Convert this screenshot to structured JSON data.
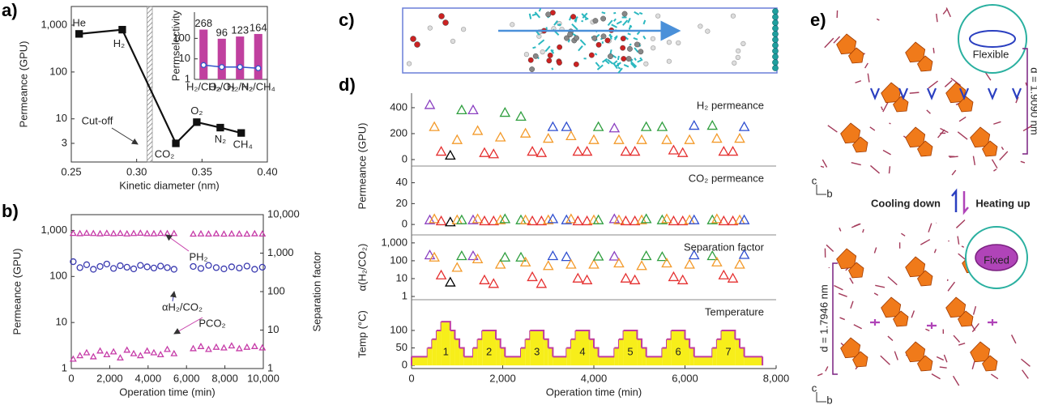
{
  "panel_labels": [
    "a)",
    "b)",
    "c)",
    "d)",
    "e)"
  ],
  "structure": {
    "callout_top": "Flexible",
    "callout_bottom": "Fixed",
    "cooling": "Cooling down",
    "heating": "Heating up",
    "spacing_top": "d = 1.9090 nm",
    "spacing_bottom": "d = 1.7946 nm",
    "axis_c": "c",
    "axis_b": "b"
  },
  "chart_data": [
    {
      "type": "line",
      "xlabel": "Kinetic diameter (nm)",
      "ylabel": "Permeance (GPU)",
      "log_y": true,
      "x": [
        0.256,
        0.289,
        0.33,
        0.346,
        0.364,
        0.38
      ],
      "values": [
        650,
        800,
        3,
        8.5,
        6.5,
        5
      ],
      "point_labels": [
        "He",
        "H₂",
        "CO₂",
        "O₂",
        "N₂",
        "CH₄"
      ],
      "color": "#111111",
      "xlim": [
        0.25,
        0.4
      ],
      "xticks": [
        0.25,
        {
          "value": 0.3,
          "label": "0.30"
        },
        0.35,
        {
          "value": 0.4,
          "label": "0.40"
        }
      ],
      "ylim": [
        1.2,
        2500
      ],
      "yticks": [
        3,
        10,
        100,
        {
          "value": 1000,
          "label": "1,000"
        }
      ],
      "cutoff_band": [
        0.308,
        0.312
      ],
      "annotations": [
        "Cut-off"
      ]
    },
    {
      "type": "bar",
      "ylabel": "Permselectivity",
      "log_y": true,
      "categories": [
        "H₂/CO₂",
        "H₂/O₂",
        "H₂/N₂",
        "H₂/CH₄"
      ],
      "series": [
        {
          "style": "bar",
          "color": "#c0409f",
          "values": [
            268,
            96,
            123,
            164
          ]
        },
        {
          "style": "line",
          "color": "#3355cc",
          "values": [
            5,
            4,
            4,
            3.5
          ]
        }
      ],
      "ylim": [
        1,
        1900
      ],
      "yticks": [
        1,
        10,
        100
      ]
    },
    {
      "type": "scatter",
      "xlabel": "Operation time (min)",
      "ylabel": "Permeance (GPU)",
      "y2label": "Separation factor",
      "log_y": true,
      "log_y2": true,
      "ycolor": "#c63ca8",
      "y2color": "#3b3bb0",
      "x": [
        100,
        450,
        800,
        1150,
        1500,
        1850,
        2200,
        2550,
        2900,
        3250,
        3600,
        3950,
        4300,
        4650,
        5000,
        5350,
        6350,
        6750,
        7150,
        7550,
        7950,
        8350,
        8750,
        9150,
        9550,
        9950
      ],
      "series": [
        {
          "marker": "triangle",
          "axis": "y",
          "color": "#c63ca8",
          "values": [
            860,
            850,
            870,
            855,
            845,
            865,
            850,
            860,
            840,
            855,
            870,
            850,
            845,
            860,
            850,
            855,
            830,
            840,
            835,
            845,
            830,
            840,
            835,
            830,
            845,
            835
          ]
        },
        {
          "marker": "circle",
          "axis": "y2",
          "color": "#3b3bb0",
          "values": [
            600,
            420,
            500,
            380,
            450,
            520,
            400,
            470,
            430,
            390,
            480,
            440,
            410,
            460,
            420,
            380,
            450,
            400,
            480,
            420,
            390,
            440,
            410,
            460,
            380,
            430
          ]
        },
        {
          "marker": "triangle",
          "axis": "y",
          "color": "#c63ca8",
          "values": [
            1.6,
            1.9,
            2.2,
            1.8,
            2.4,
            2.0,
            2.3,
            1.7,
            2.5,
            2.1,
            1.9,
            2.4,
            2.2,
            2.0,
            2.6,
            2.1,
            2.7,
            3.0,
            2.6,
            2.9,
            2.8,
            3.1,
            2.7,
            2.9,
            3.0,
            2.8
          ]
        }
      ],
      "annotations": [
        "PH₂",
        "αH₂/CO₂",
        "PCO₂"
      ],
      "xlim": [
        0,
        10000
      ],
      "xticks": [
        0,
        {
          "value": 2000,
          "label": "2,000"
        },
        {
          "value": 4000,
          "label": "4,000"
        },
        {
          "value": 6000,
          "label": "6,000"
        },
        {
          "value": 8000,
          "label": "8,000"
        },
        {
          "value": 10000,
          "label": "10,000"
        }
      ],
      "ylim": [
        1,
        2200
      ],
      "yticks": [
        1,
        10,
        100,
        {
          "value": 1000,
          "label": "1,000"
        }
      ],
      "y2lim": [
        1,
        10000
      ],
      "y2ticks": [
        1,
        10,
        100,
        {
          "value": 1000,
          "label": "1,000"
        },
        {
          "value": 10000,
          "label": "10,000"
        }
      ]
    },
    {
      "type": "scatter",
      "title": "H₂ permeance",
      "ylabel": "Permeance (GPU)",
      "marker": "triangle",
      "x": [
        400,
        500,
        650,
        850,
        1000,
        1100,
        1350,
        1450,
        1600,
        1800,
        1950,
        2050,
        2400,
        2500,
        2650,
        2850,
        3000,
        3100,
        3400,
        3500,
        3650,
        3850,
        4000,
        4100,
        4450,
        4550,
        4700,
        4900,
        5050,
        5150,
        5500,
        5600,
        5750,
        5950,
        6100,
        6200,
        6600,
        6700,
        6850,
        7050,
        7200,
        7300
      ],
      "values": [
        420,
        250,
        60,
        30,
        150,
        380,
        380,
        220,
        50,
        40,
        170,
        360,
        330,
        200,
        60,
        50,
        160,
        250,
        250,
        180,
        60,
        60,
        150,
        250,
        240,
        150,
        60,
        60,
        150,
        250,
        250,
        150,
        70,
        50,
        150,
        260,
        260,
        160,
        60,
        60,
        160,
        250
      ],
      "colors": [
        "#8a3fc0",
        "#f39a2a",
        "#e53030",
        "#000000",
        "#f39a2a",
        "#2e9e3e",
        "#8a3fc0",
        "#f39a2a",
        "#e53030",
        "#e53030",
        "#f39a2a",
        "#2e9e3e",
        "#2e9e3e",
        "#f39a2a",
        "#e53030",
        "#e53030",
        "#f39a2a",
        "#2f4fd0",
        "#2f4fd0",
        "#f39a2a",
        "#e53030",
        "#e53030",
        "#f39a2a",
        "#2e9e3e",
        "#8a3fc0",
        "#f39a2a",
        "#e53030",
        "#e53030",
        "#f39a2a",
        "#2e9e3e",
        "#2e9e3e",
        "#f39a2a",
        "#e53030",
        "#e53030",
        "#f39a2a",
        "#2f4fd0",
        "#2e9e3e",
        "#f39a2a",
        "#e53030",
        "#e53030",
        "#f39a2a",
        "#2f4fd0"
      ],
      "xlim": [
        0,
        8000
      ],
      "ylim": [
        -50,
        512
      ],
      "yticks": [
        0,
        200,
        400
      ]
    },
    {
      "type": "scatter",
      "title": "CO₂ permeance",
      "marker": "triangle",
      "x": [
        400,
        500,
        650,
        850,
        1000,
        1100,
        1350,
        1450,
        1600,
        1800,
        1950,
        2050,
        2400,
        2500,
        2650,
        2850,
        3000,
        3100,
        3400,
        3500,
        3650,
        3850,
        4000,
        4100,
        4450,
        4550,
        4700,
        4900,
        5050,
        5150,
        5500,
        5600,
        5750,
        5950,
        6100,
        6200,
        6600,
        6700,
        6850,
        7050,
        7200,
        7300
      ],
      "values": [
        4,
        5,
        3,
        2,
        4,
        4,
        4,
        5,
        3,
        3,
        4,
        5,
        4,
        4,
        3,
        3,
        4,
        5,
        4,
        5,
        3,
        3,
        4,
        4,
        5,
        4,
        3,
        3,
        4,
        5,
        4,
        5,
        3,
        3,
        4,
        4,
        4,
        5,
        3,
        3,
        4,
        4
      ],
      "colors": [
        "#8a3fc0",
        "#f39a2a",
        "#e53030",
        "#000000",
        "#f39a2a",
        "#2e9e3e",
        "#8a3fc0",
        "#f39a2a",
        "#e53030",
        "#e53030",
        "#f39a2a",
        "#2e9e3e",
        "#2e9e3e",
        "#f39a2a",
        "#e53030",
        "#e53030",
        "#f39a2a",
        "#2f4fd0",
        "#2f4fd0",
        "#f39a2a",
        "#e53030",
        "#e53030",
        "#f39a2a",
        "#2e9e3e",
        "#8a3fc0",
        "#f39a2a",
        "#e53030",
        "#e53030",
        "#f39a2a",
        "#2e9e3e",
        "#2e9e3e",
        "#f39a2a",
        "#e53030",
        "#e53030",
        "#f39a2a",
        "#2f4fd0",
        "#2e9e3e",
        "#f39a2a",
        "#e53030",
        "#e53030",
        "#f39a2a",
        "#2f4fd0"
      ],
      "xlim": [
        0,
        8000
      ],
      "ylim": [
        -10,
        56
      ],
      "yticks": [
        0,
        20,
        40
      ]
    },
    {
      "type": "scatter",
      "title": "Separation factor",
      "ylabel": "α(H₂/CO₂)",
      "marker": "triangle",
      "log_y": true,
      "x": [
        400,
        500,
        650,
        850,
        1000,
        1100,
        1350,
        1450,
        1600,
        1800,
        1950,
        2050,
        2400,
        2500,
        2650,
        2850,
        3000,
        3100,
        3400,
        3500,
        3650,
        3850,
        4000,
        4100,
        4450,
        4550,
        4700,
        4900,
        5050,
        5150,
        5500,
        5600,
        5750,
        5950,
        6100,
        6200,
        6600,
        6700,
        6850,
        7050,
        7200,
        7300
      ],
      "values": [
        200,
        150,
        15,
        6,
        40,
        180,
        180,
        120,
        8,
        5,
        60,
        150,
        150,
        80,
        12,
        5,
        50,
        180,
        160,
        60,
        10,
        8,
        60,
        170,
        170,
        70,
        10,
        8,
        50,
        180,
        160,
        70,
        12,
        8,
        60,
        200,
        180,
        80,
        15,
        10,
        60,
        210
      ],
      "colors": [
        "#8a3fc0",
        "#f39a2a",
        "#e53030",
        "#000000",
        "#f39a2a",
        "#2e9e3e",
        "#8a3fc0",
        "#f39a2a",
        "#e53030",
        "#e53030",
        "#f39a2a",
        "#2e9e3e",
        "#2e9e3e",
        "#f39a2a",
        "#e53030",
        "#e53030",
        "#f39a2a",
        "#2f4fd0",
        "#2f4fd0",
        "#f39a2a",
        "#e53030",
        "#e53030",
        "#f39a2a",
        "#2e9e3e",
        "#8a3fc0",
        "#f39a2a",
        "#e53030",
        "#e53030",
        "#f39a2a",
        "#2e9e3e",
        "#2e9e3e",
        "#f39a2a",
        "#e53030",
        "#e53030",
        "#f39a2a",
        "#2f4fd0",
        "#2e9e3e",
        "#f39a2a",
        "#e53030",
        "#e53030",
        "#f39a2a",
        "#2f4fd0"
      ],
      "xlim": [
        0,
        8000
      ],
      "ylim": [
        0.66,
        2800
      ],
      "yticks": [
        1,
        10,
        100,
        {
          "value": 1000,
          "label": "1,000"
        }
      ]
    },
    {
      "type": "step",
      "title": "Temperature",
      "ylabel": "Temp (°C)",
      "xlabel": "Operation time (min)",
      "color": "#c03ca0",
      "fill": "#f7ee1a",
      "x": [
        0,
        350,
        450,
        550,
        650,
        850,
        950,
        1050,
        1150,
        1350,
        1450,
        1550,
        1850,
        1950,
        2050,
        2400,
        2500,
        2600,
        2900,
        3000,
        3100,
        3400,
        3500,
        3600,
        3900,
        4000,
        4100,
        4450,
        4550,
        4650,
        4950,
        5050,
        5150,
        5500,
        5600,
        5700,
        6000,
        6100,
        6200,
        6600,
        6700,
        6800,
        7100,
        7200,
        7300,
        7700
      ],
      "values": [
        25,
        50,
        75,
        100,
        125,
        100,
        75,
        50,
        25,
        50,
        75,
        100,
        75,
        50,
        25,
        50,
        75,
        100,
        75,
        50,
        25,
        50,
        75,
        100,
        75,
        50,
        25,
        50,
        75,
        100,
        75,
        50,
        25,
        50,
        75,
        100,
        75,
        50,
        25,
        50,
        75,
        100,
        75,
        50,
        25,
        25
      ],
      "cycle_labels": [
        "1",
        "2",
        "3",
        "4",
        "5",
        "6",
        "7"
      ],
      "xlim": [
        0,
        8000
      ],
      "xticks": [
        0,
        {
          "value": 2000,
          "label": "2,000"
        },
        {
          "value": 4000,
          "label": "4,000"
        },
        {
          "value": 6000,
          "label": "6,000"
        },
        {
          "value": 8000,
          "label": "8,000"
        }
      ],
      "ylim": [
        -9,
        188
      ],
      "yticks": [
        0,
        50,
        100
      ]
    }
  ]
}
